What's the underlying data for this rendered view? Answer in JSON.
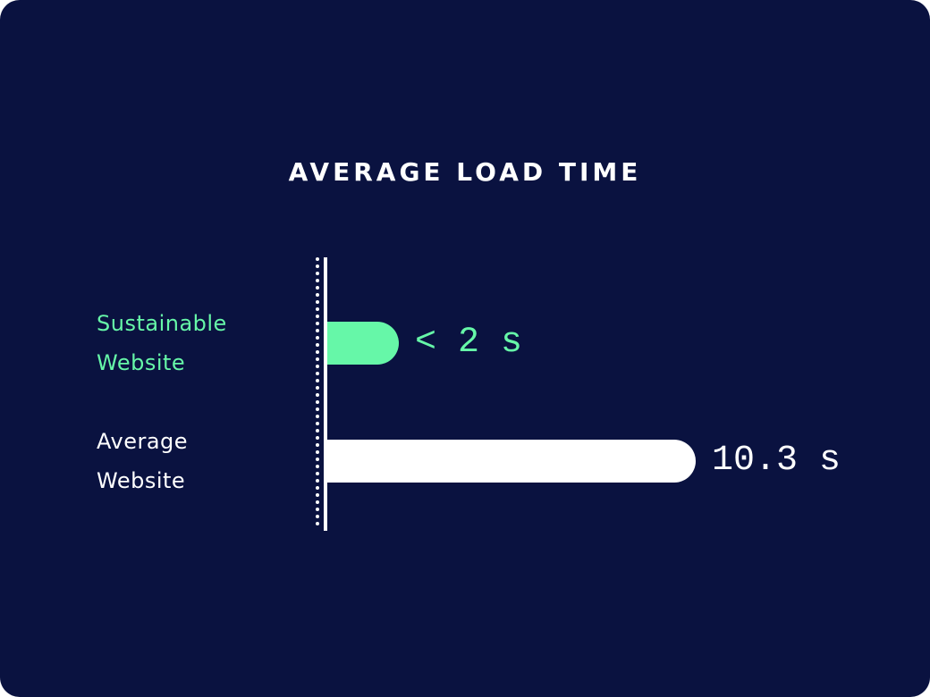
{
  "chart_data": {
    "type": "bar",
    "orientation": "horizontal",
    "title": "AVERAGE LOAD TIME",
    "categories": [
      "Sustainable Website",
      "Average Website"
    ],
    "values": [
      2,
      10.3
    ],
    "value_labels": [
      "< 2 s",
      "10.3 s"
    ],
    "colors": [
      "#66f7a8",
      "#ffffff"
    ]
  }
}
